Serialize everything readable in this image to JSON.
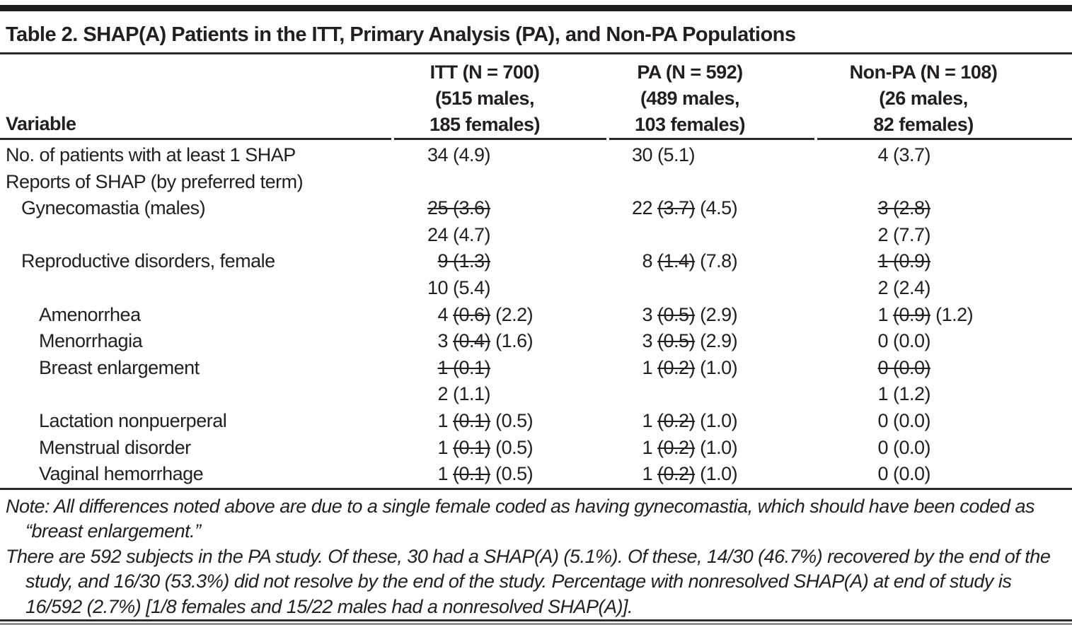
{
  "title": "Table 2. SHAP(A) Patients in the ITT, Primary Analysis (PA), and Non-PA Populations",
  "columns": {
    "variable_label": "Variable",
    "groups": [
      {
        "name": "itt",
        "lines": [
          "ITT (N = 700)",
          "(515 males,",
          "185 females)"
        ]
      },
      {
        "name": "pa",
        "lines": [
          "PA (N = 592)",
          "(489 males,",
          "103 females)"
        ]
      },
      {
        "name": "non-pa",
        "lines": [
          "Non-PA (N = 108)",
          "(26 males,",
          "82 females)"
        ]
      }
    ]
  },
  "rows": [
    {
      "label": "No. of patients with at least 1 SHAP",
      "indent": 0,
      "cells": [
        [
          {
            "t": "34 (4.9)",
            "s": false
          }
        ],
        [
          {
            "t": "30 (5.1)",
            "s": false
          }
        ],
        [
          {
            "t": "4 (3.7)",
            "s": false
          }
        ]
      ]
    },
    {
      "label": "Reports of SHAP (by preferred term)",
      "indent": 0,
      "cells": [
        [],
        [],
        []
      ]
    },
    {
      "label": "Gynecomastia (males)",
      "indent": 1,
      "cells": [
        [
          {
            "t": "25 (3.6)",
            "s": true
          }
        ],
        [
          {
            "t": "22 ",
            "s": false
          },
          {
            "t": "(3.7)",
            "s": true
          },
          {
            "t": " (4.5)",
            "s": false
          }
        ],
        [
          {
            "t": "3 (2.8)",
            "s": true
          }
        ]
      ]
    },
    {
      "label": "",
      "indent": 1,
      "cells": [
        [
          {
            "t": "24 (4.7)",
            "s": false
          }
        ],
        [],
        [
          {
            "t": "2 (7.7)",
            "s": false
          }
        ]
      ]
    },
    {
      "label": "Reproductive disorders, female",
      "indent": 1,
      "cells": [
        [
          {
            "t": "9 (1.3)",
            "s": true
          }
        ],
        [
          {
            "t": "8 ",
            "s": false
          },
          {
            "t": "(1.4)",
            "s": true
          },
          {
            "t": " (7.8)",
            "s": false
          }
        ],
        [
          {
            "t": "1 (0.9)",
            "s": true
          }
        ]
      ]
    },
    {
      "label": "",
      "indent": 1,
      "cells": [
        [
          {
            "t": "10 (5.4)",
            "s": false
          }
        ],
        [],
        [
          {
            "t": "2 (2.4)",
            "s": false
          }
        ]
      ]
    },
    {
      "label": "Amenorrhea",
      "indent": 2,
      "cells": [
        [
          {
            "t": "4 ",
            "s": false
          },
          {
            "t": "(0.6)",
            "s": true
          },
          {
            "t": " (2.2)",
            "s": false
          }
        ],
        [
          {
            "t": "3 ",
            "s": false
          },
          {
            "t": "(0.5)",
            "s": true
          },
          {
            "t": " (2.9)",
            "s": false
          }
        ],
        [
          {
            "t": "1 ",
            "s": false
          },
          {
            "t": "(0.9)",
            "s": true
          },
          {
            "t": " (1.2)",
            "s": false
          }
        ]
      ]
    },
    {
      "label": "Menorrhagia",
      "indent": 2,
      "cells": [
        [
          {
            "t": "3 ",
            "s": false
          },
          {
            "t": "(0.4)",
            "s": true
          },
          {
            "t": " (1.6)",
            "s": false
          }
        ],
        [
          {
            "t": "3 ",
            "s": false
          },
          {
            "t": "(0.5)",
            "s": true
          },
          {
            "t": " (2.9)",
            "s": false
          }
        ],
        [
          {
            "t": "0 (0.0)",
            "s": false
          }
        ]
      ]
    },
    {
      "label": "Breast enlargement",
      "indent": 2,
      "cells": [
        [
          {
            "t": "1 (0.1)",
            "s": true
          }
        ],
        [
          {
            "t": "1 ",
            "s": false
          },
          {
            "t": "(0.2)",
            "s": true
          },
          {
            "t": " (1.0)",
            "s": false
          }
        ],
        [
          {
            "t": "0 (0.0)",
            "s": true
          }
        ]
      ]
    },
    {
      "label": "",
      "indent": 2,
      "cells": [
        [
          {
            "t": "2 (1.1)",
            "s": false
          }
        ],
        [],
        [
          {
            "t": "1 (1.2)",
            "s": false
          }
        ]
      ]
    },
    {
      "label": "Lactation nonpuerperal",
      "indent": 2,
      "cells": [
        [
          {
            "t": "1 ",
            "s": false
          },
          {
            "t": "(0.1)",
            "s": true
          },
          {
            "t": " (0.5)",
            "s": false
          }
        ],
        [
          {
            "t": "1 ",
            "s": false
          },
          {
            "t": "(0.2)",
            "s": true
          },
          {
            "t": " (1.0)",
            "s": false
          }
        ],
        [
          {
            "t": "0 (0.0)",
            "s": false
          }
        ]
      ]
    },
    {
      "label": "Menstrual disorder",
      "indent": 2,
      "cells": [
        [
          {
            "t": "1 ",
            "s": false
          },
          {
            "t": "(0.1)",
            "s": true
          },
          {
            "t": " (0.5)",
            "s": false
          }
        ],
        [
          {
            "t": "1 ",
            "s": false
          },
          {
            "t": "(0.2)",
            "s": true
          },
          {
            "t": " (1.0)",
            "s": false
          }
        ],
        [
          {
            "t": "0 (0.0)",
            "s": false
          }
        ]
      ]
    },
    {
      "label": "Vaginal hemorrhage",
      "indent": 2,
      "cells": [
        [
          {
            "t": "1 ",
            "s": false
          },
          {
            "t": "(0.1)",
            "s": true
          },
          {
            "t": " (0.5)",
            "s": false
          }
        ],
        [
          {
            "t": "1 ",
            "s": false
          },
          {
            "t": "(0.2)",
            "s": true
          },
          {
            "t": " (1.0)",
            "s": false
          }
        ],
        [
          {
            "t": "0 (0.0)",
            "s": false
          }
        ]
      ]
    }
  ],
  "notes": [
    "Note: All differences noted above are due to a single female coded as having gynecomastia, which should have been coded as “breast enlargement.”",
    "There are 592 subjects in the PA study. Of these, 30 had a SHAP(A) (5.1%). Of these, 14/30 (46.7%) recovered by the end of the study, and 16/30 (53.3%) did not resolve by the end of the study. Percentage with nonresolved SHAP(A) at end of study is 16/592 (2.7%) [1/8 females and 15/22 males had a nonresolved SHAP(A)]."
  ],
  "colors": {
    "text": "#231f20",
    "rule_dark": "#2a2a2a",
    "rule_gray": "#909090",
    "top_bar": "#1c1c1c",
    "background": "#ffffff"
  }
}
